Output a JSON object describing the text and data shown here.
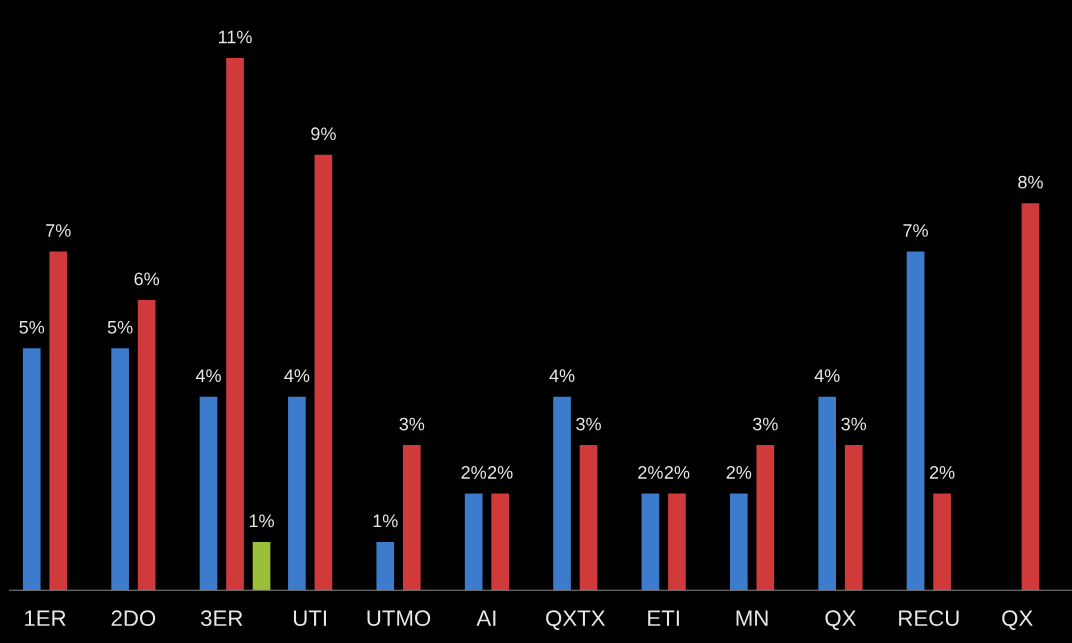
{
  "chart_data": {
    "type": "bar",
    "categories": [
      "1ER",
      "2DO",
      "3ER",
      "UTI",
      "UTMO",
      "AI",
      "QXTX",
      "ETI",
      "MN",
      "QX",
      "RECU",
      "QX"
    ],
    "series": [
      {
        "color": "#3d7bcc",
        "values": [
          5,
          5,
          4,
          4,
          1,
          2,
          4,
          2,
          2,
          4,
          7,
          null
        ],
        "value_labels": [
          "5%",
          "5%",
          "4%",
          "4%",
          "1%",
          "2%",
          "4%",
          "2%",
          "2%",
          "4%",
          "7%",
          null
        ]
      },
      {
        "color": "#d03a3a",
        "values": [
          7,
          6,
          11,
          9,
          3,
          2,
          3,
          2,
          3,
          3,
          2,
          8
        ],
        "value_labels": [
          "7%",
          "6%",
          "11%",
          "9%",
          "3%",
          "2%",
          "3%",
          "2%",
          "3%",
          "3%",
          "2%",
          "8%"
        ]
      },
      {
        "color": "#9cbf3a",
        "values": [
          null,
          null,
          1,
          null,
          null,
          null,
          null,
          null,
          null,
          null,
          null,
          null
        ],
        "value_labels": [
          null,
          null,
          "1%",
          null,
          null,
          null,
          null,
          null,
          null,
          null,
          null,
          null
        ]
      }
    ],
    "ylim": [
      0,
      12.2
    ],
    "tick_labels": "x",
    "grid": false,
    "legend": false
  }
}
